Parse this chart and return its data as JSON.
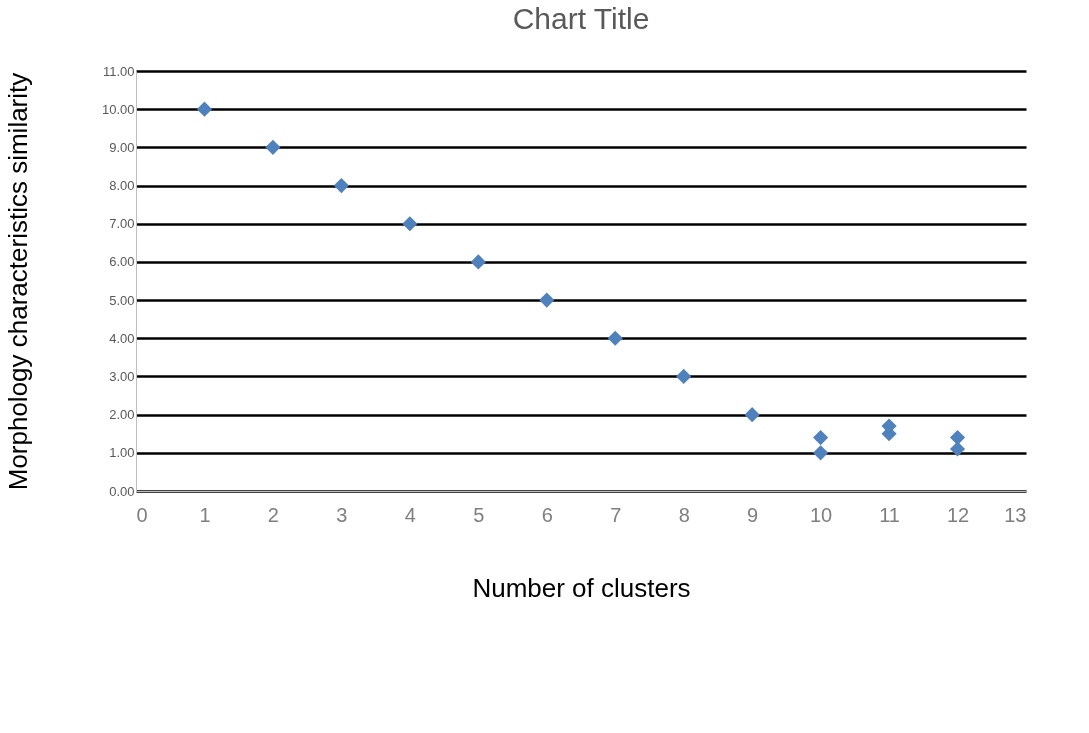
{
  "chart_data": {
    "type": "scatter",
    "title": "Chart Title",
    "xlabel": "Number of clusters",
    "ylabel": "Morphology characteristics similarity",
    "x": [
      1,
      2,
      3,
      4,
      5,
      6,
      7,
      8,
      9,
      10,
      10,
      11,
      11,
      12,
      12
    ],
    "series": [
      {
        "color": "#4f81bd",
        "values": [
          10,
          9,
          8,
          7,
          6,
          5,
          4,
          3,
          2,
          1.0,
          1.4,
          1.5,
          1.7,
          1.1,
          1.4
        ]
      }
    ],
    "xlim": [
      0,
      13
    ],
    "xticks": [
      0,
      1,
      2,
      3,
      4,
      5,
      6,
      7,
      8,
      9,
      10,
      11,
      12,
      13
    ],
    "ylim": [
      0,
      11
    ],
    "yticks": [
      {
        "value": 0,
        "label": "0.00"
      },
      {
        "value": 1,
        "label": "1.00"
      },
      {
        "value": 2,
        "label": "2.00"
      },
      {
        "value": 3,
        "label": "3.00"
      },
      {
        "value": 4,
        "label": "4.00"
      },
      {
        "value": 5,
        "label": "5.00"
      },
      {
        "value": 6,
        "label": "6.00"
      },
      {
        "value": 7,
        "label": "7.00"
      },
      {
        "value": 8,
        "label": "8.00"
      },
      {
        "value": 9,
        "label": "9.00"
      },
      {
        "value": 10,
        "label": "10.00"
      },
      {
        "value": 11,
        "label": "11.00"
      }
    ],
    "grid": "y",
    "marker": "diamond",
    "legend": false
  }
}
